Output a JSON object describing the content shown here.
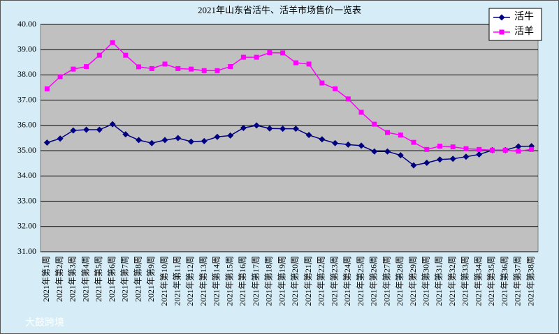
{
  "chart_data": {
    "type": "line",
    "title": "2021年山东省活牛、活羊市场售价一览表",
    "watermark": "大鼓跨境",
    "categories": [
      "2021年第1周",
      "2021年第2周",
      "2021年第3周",
      "2021年第4周",
      "2021年第5周",
      "2021年第6周",
      "2021年第7周",
      "2021年第8周",
      "2021年第9周",
      "2021年第10周",
      "2021年第11周",
      "2021年第12周",
      "2021年第13周",
      "2021年第14周",
      "2021年第15周",
      "2021年第16周",
      "2021年第17周",
      "2021年第18周",
      "2021年第19周",
      "2021年第20周",
      "2021年第21周",
      "2021年第22周",
      "2021年第23周",
      "2021年第24周",
      "2021年第25周",
      "2021年第26周",
      "2021年第27周",
      "2021年第28周",
      "2021年第29周",
      "2021年第30周",
      "2021年第31周",
      "2021年第32周",
      "2021年第33周",
      "2021年第34周",
      "2021年第35周",
      "2021年第36周",
      "2021年第37周",
      "2021年第38周"
    ],
    "series": [
      {
        "name": "活牛",
        "color": "#000080",
        "marker": "diamond",
        "values": [
          35.32,
          35.48,
          35.8,
          35.83,
          35.83,
          36.05,
          35.65,
          35.42,
          35.3,
          35.42,
          35.5,
          35.36,
          35.38,
          35.55,
          35.6,
          35.9,
          36.0,
          35.88,
          35.87,
          35.87,
          35.62,
          35.45,
          35.3,
          35.24,
          35.2,
          34.97,
          34.97,
          34.82,
          34.42,
          34.52,
          34.65,
          34.68,
          34.76,
          34.85,
          35.02,
          35.02,
          35.17,
          35.18
        ]
      },
      {
        "name": "活羊",
        "color": "#ff00ff",
        "marker": "square",
        "values": [
          37.45,
          37.93,
          38.23,
          38.33,
          38.78,
          39.28,
          38.78,
          38.32,
          38.25,
          38.43,
          38.25,
          38.23,
          38.17,
          38.17,
          38.33,
          38.7,
          38.7,
          38.88,
          38.87,
          38.48,
          38.43,
          37.68,
          37.45,
          37.05,
          36.52,
          36.05,
          35.72,
          35.62,
          35.33,
          35.05,
          35.18,
          35.15,
          35.08,
          35.05,
          35.02,
          35.02,
          34.98,
          35.05
        ]
      }
    ],
    "ylim": [
      31,
      40
    ],
    "yticks": [
      {
        "value": 31,
        "label": "31.00"
      },
      {
        "value": 32,
        "label": "32.00"
      },
      {
        "value": 33,
        "label": "33.00"
      },
      {
        "value": 34,
        "label": "34.00"
      },
      {
        "value": 35,
        "label": "35.00"
      },
      {
        "value": 36,
        "label": "36.00"
      },
      {
        "value": 37,
        "label": "37.00"
      },
      {
        "value": 38,
        "label": "38.00"
      },
      {
        "value": 39,
        "label": "39.00"
      },
      {
        "value": 40,
        "label": "40.00"
      }
    ],
    "grid": true,
    "legend": "top-right",
    "plot_color": "#c0c0c0",
    "background": "#d6edf7"
  }
}
